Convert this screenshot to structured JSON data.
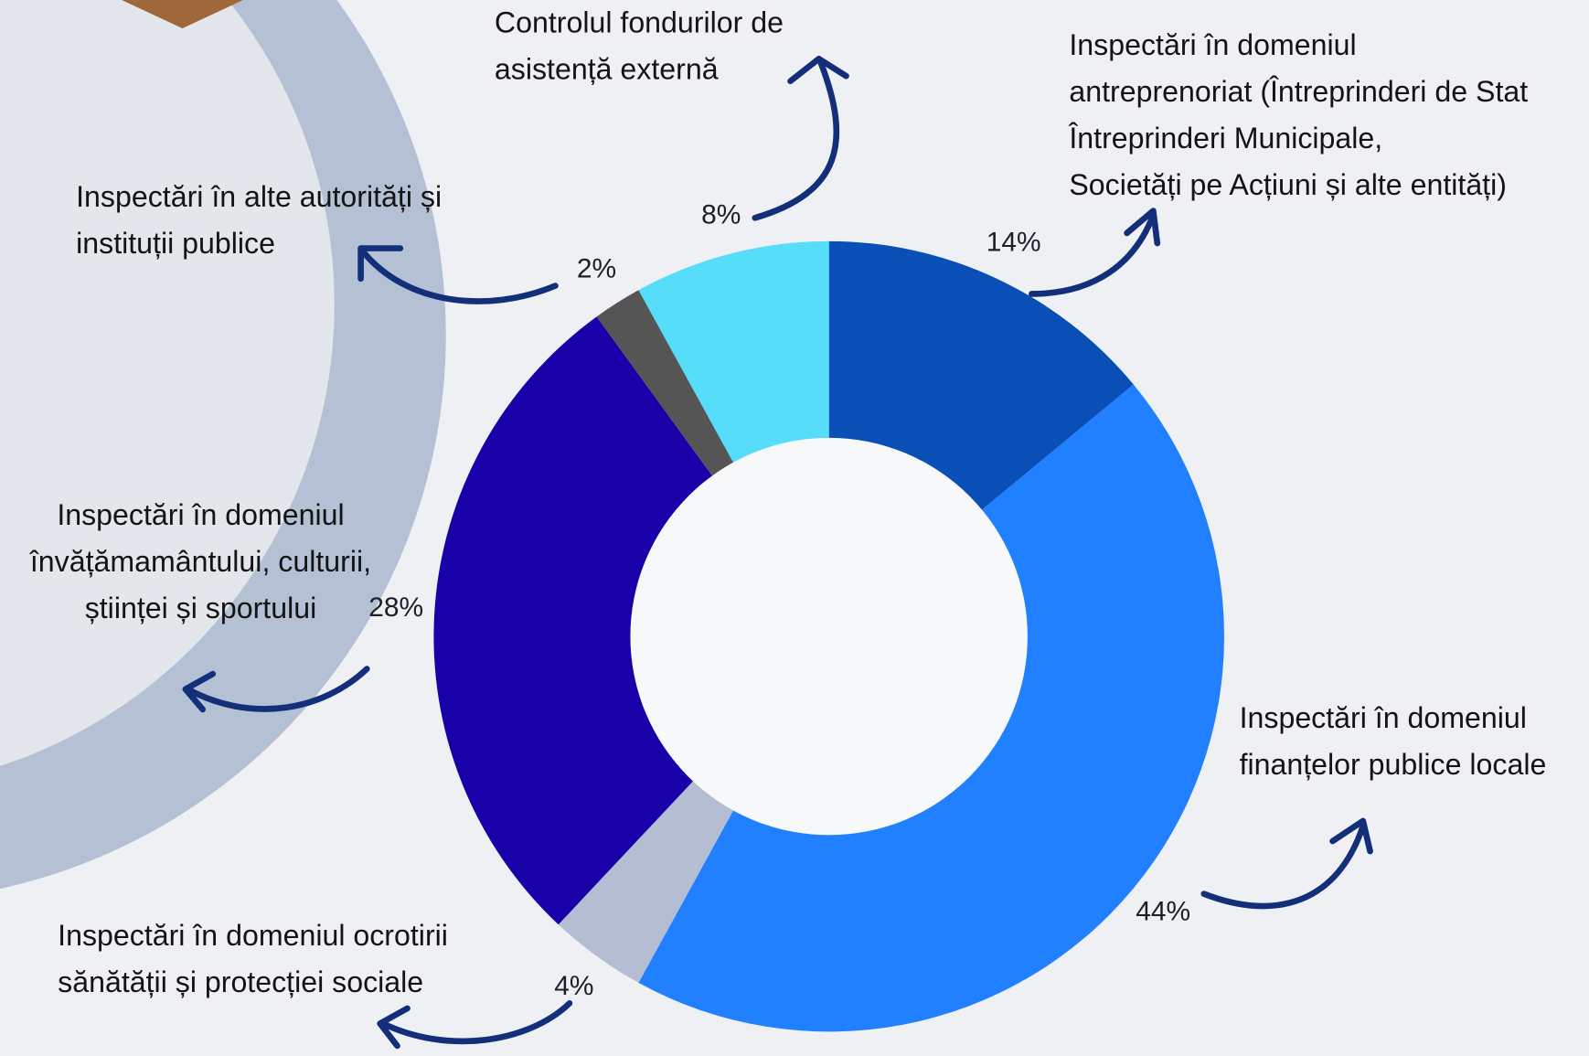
{
  "chart_data": {
    "type": "pie",
    "categories": [
      "Inspectări în domeniul\nantreprenoriat (Întreprinderi de Stat\nÎntreprinderi Municipale,\nSocietăți pe Acțiuni și alte entități)",
      "Inspectări în domeniul\nfinanțelor publice locale",
      "Inspectări în domeniul ocrotirii\nsănătății și protecției sociale",
      "Inspectări în domeniul\nînvățămamântului, culturii,\nștiinței și sportului",
      "Inspectări în alte autorități și\ninstituții publice",
      "Controlul fondurilor de\nasistență externă"
    ],
    "values": [
      14,
      44,
      4,
      28,
      2,
      8
    ],
    "value_labels": [
      "14%",
      "44%",
      "4%",
      "28%",
      "2%",
      "8%"
    ],
    "colors": [
      "#0a4fb5",
      "#2080ff",
      "#b5bdd3",
      "#1a00a8",
      "#555555",
      "#55ddfa"
    ]
  }
}
